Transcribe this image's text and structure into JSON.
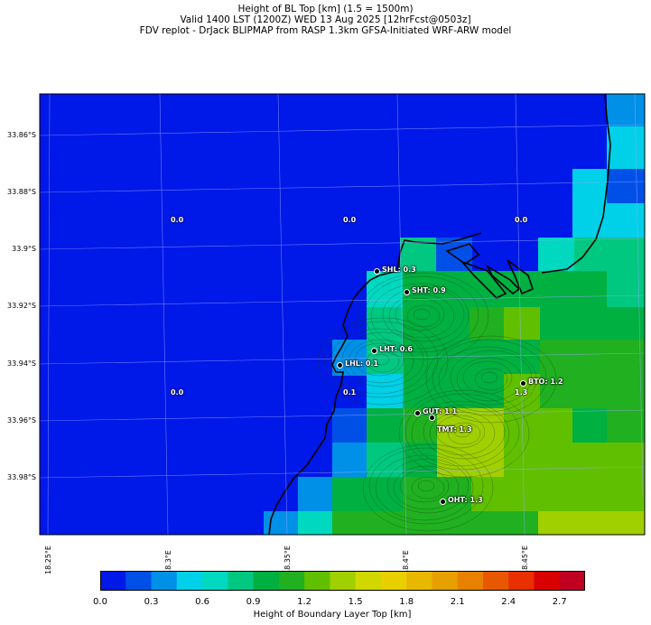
{
  "header": {
    "line1": "Height of BL Top [km] (1.5 = 1500m)",
    "line2": "Valid 1400 LST (1200Z) WED 13 Aug 2025 [12hrFcst@0503z]",
    "line3": "FDV replot - DrJack BLIPMAP from RASP 1.3km GFSA-Initiated WRF-ARW model"
  },
  "map": {
    "lat_labels": [
      "33.86°S",
      "33.88°S",
      "33.9°S",
      "33.92°S",
      "33.94°S",
      "33.96°S",
      "33.98°S"
    ],
    "lon_labels": [
      "18.25°E",
      "18.3°E",
      "18.35°E",
      "18.4°E",
      "18.45°E"
    ],
    "stations": [
      {
        "id": "SHL",
        "label": "SHL: 0.3"
      },
      {
        "id": "SHT",
        "label": "SHT: 0.9"
      },
      {
        "id": "LHT",
        "label": "LHT: 0.6"
      },
      {
        "id": "LHL",
        "label": "LHL: 0.1"
      },
      {
        "id": "BTO",
        "label": "BTO: 1.2"
      },
      {
        "id": "GUT",
        "label": "GUT: 1.1"
      },
      {
        "id": "TMT",
        "label": "TMT: 1.3"
      },
      {
        "id": "OHT",
        "label": "OHT: 1.3"
      }
    ],
    "grid_values": [
      "0.0",
      "0.0",
      "0.0",
      "0.0",
      "0.1",
      "1.3"
    ]
  },
  "colorbar": {
    "label": "Height of Boundary Layer Top [km]",
    "ticks": [
      "0.0",
      "0.3",
      "0.6",
      "0.9",
      "1.2",
      "1.5",
      "1.8",
      "2.1",
      "2.4",
      "2.7"
    ],
    "colors": [
      "#0018e8",
      "#0050e8",
      "#0090e8",
      "#00d0e8",
      "#00d8c0",
      "#00c880",
      "#00b040",
      "#20b020",
      "#60c000",
      "#a0d000",
      "#d0d800",
      "#e8d000",
      "#e8b800",
      "#e8a000",
      "#e88000",
      "#e85800",
      "#e83000",
      "#d80000",
      "#c00020"
    ]
  }
}
